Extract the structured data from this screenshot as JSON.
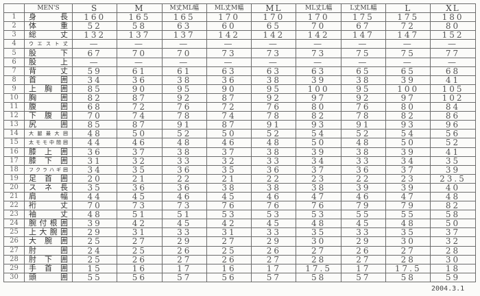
{
  "header": [
    "",
    "MEN'S",
    "S",
    "M",
    "M丈ML幅",
    "ML丈M幅",
    "ML",
    "ML丈L幅",
    "L丈ML幅",
    "L",
    "XL"
  ],
  "rows": [
    {
      "no": "1",
      "label": "身長",
      "values": [
        "160",
        "165",
        "165",
        "170",
        "170",
        "170",
        "175",
        "175",
        "180"
      ]
    },
    {
      "no": "2",
      "label": "体重",
      "values": [
        "52",
        "58",
        "63",
        "60",
        "65",
        "70",
        "67",
        "72",
        "80"
      ]
    },
    {
      "no": "3",
      "label": "総丈",
      "values": [
        "132",
        "137",
        "137",
        "142",
        "142",
        "142",
        "147",
        "147",
        "152"
      ]
    },
    {
      "no": "4",
      "label": "ウエスト丈",
      "values": [
        "—",
        "—",
        "—",
        "—",
        "—",
        "—",
        "—",
        "—",
        "—"
      ]
    },
    {
      "no": "5",
      "label": "股下",
      "values": [
        "67",
        "70",
        "70",
        "73",
        "73",
        "73",
        "75",
        "75",
        "77"
      ]
    },
    {
      "no": "6",
      "label": "股上",
      "values": [
        "—",
        "—",
        "—",
        "—",
        "—",
        "—",
        "—",
        "—",
        "—"
      ]
    },
    {
      "no": "7",
      "label": "背丈",
      "values": [
        "59",
        "61",
        "61",
        "63",
        "63",
        "63",
        "65",
        "65",
        "68"
      ]
    },
    {
      "no": "8",
      "label": "首囲",
      "values": [
        "34",
        "36",
        "38",
        "36",
        "38",
        "39",
        "38",
        "39",
        "41"
      ]
    },
    {
      "no": "9",
      "label": "上胸囲",
      "values": [
        "85",
        "90",
        "95",
        "90",
        "95",
        "100",
        "95",
        "100",
        "105"
      ]
    },
    {
      "no": "10",
      "label": "胸囲",
      "values": [
        "82",
        "87",
        "92",
        "87",
        "92",
        "97",
        "92",
        "97",
        "102"
      ]
    },
    {
      "no": "11",
      "label": "腹囲",
      "values": [
        "68",
        "72",
        "76",
        "72",
        "76",
        "80",
        "76",
        "80",
        "84"
      ]
    },
    {
      "no": "12",
      "label": "下腹囲",
      "values": [
        "70",
        "74",
        "78",
        "74",
        "78",
        "82",
        "78",
        "82",
        "86"
      ]
    },
    {
      "no": "13",
      "label": "尻囲",
      "values": [
        "85",
        "87",
        "91",
        "87",
        "91",
        "93",
        "91",
        "93",
        "96"
      ]
    },
    {
      "no": "14",
      "label": "大腿最大囲",
      "values": [
        "48",
        "50",
        "52",
        "50",
        "52",
        "54",
        "52",
        "54",
        "56"
      ]
    },
    {
      "no": "15",
      "label": "太モモ中間囲",
      "values": [
        "44",
        "46",
        "48",
        "46",
        "48",
        "50",
        "48",
        "50",
        "52"
      ]
    },
    {
      "no": "16",
      "label": "膝上囲",
      "values": [
        "36",
        "37",
        "38",
        "37",
        "38",
        "39",
        "38",
        "39",
        "41"
      ]
    },
    {
      "no": "17",
      "label": "膝下囲",
      "values": [
        "31",
        "32",
        "33",
        "32",
        "33",
        "34",
        "33",
        "34",
        "35"
      ]
    },
    {
      "no": "18",
      "label": "フクラハギ囲",
      "values": [
        "34",
        "35",
        "36",
        "35",
        "36",
        "37",
        "36",
        "37",
        "39"
      ]
    },
    {
      "no": "19",
      "label": "足首囲",
      "values": [
        "20",
        "21",
        "22",
        "21",
        "22",
        "23",
        "22",
        "23",
        "23.5"
      ]
    },
    {
      "no": "20",
      "label": "スネ長",
      "values": [
        "35",
        "36",
        "36",
        "38",
        "38",
        "38",
        "39",
        "39",
        "40"
      ]
    },
    {
      "no": "21",
      "label": "肩幅",
      "values": [
        "44",
        "45",
        "46",
        "45",
        "46",
        "47",
        "46",
        "47",
        "48"
      ]
    },
    {
      "no": "22",
      "label": "裄丈",
      "values": [
        "70",
        "73",
        "73",
        "76",
        "76",
        "76",
        "79",
        "79",
        "82"
      ]
    },
    {
      "no": "23",
      "label": "袖丈",
      "values": [
        "48",
        "51",
        "51",
        "53",
        "53",
        "53",
        "55",
        "55",
        "58"
      ]
    },
    {
      "no": "24",
      "label": "腕付根囲",
      "values": [
        "39",
        "42",
        "45",
        "42",
        "45",
        "48",
        "45",
        "48",
        "50"
      ]
    },
    {
      "no": "25",
      "label": "上大腕囲",
      "values": [
        "29",
        "31",
        "33",
        "31",
        "33",
        "35",
        "33",
        "35",
        "37"
      ]
    },
    {
      "no": "26",
      "label": "大腕囲",
      "values": [
        "25",
        "27",
        "29",
        "27",
        "29",
        "30",
        "29",
        "30",
        "32"
      ]
    },
    {
      "no": "27",
      "label": "肘囲",
      "values": [
        "24",
        "25",
        "26",
        "25",
        "26",
        "27",
        "26",
        "27",
        "28"
      ]
    },
    {
      "no": "28",
      "label": "肘下囲",
      "values": [
        "25",
        "26",
        "27",
        "26",
        "27",
        "28",
        "27",
        "28",
        "30"
      ]
    },
    {
      "no": "29",
      "label": "手首囲",
      "values": [
        "15",
        "16",
        "17",
        "16",
        "17",
        "17.5",
        "17",
        "17.5",
        "18"
      ]
    },
    {
      "no": "30",
      "label": "頭囲",
      "values": [
        "55",
        "56",
        "57",
        "56",
        "57",
        "58",
        "57",
        "58",
        "59"
      ]
    }
  ],
  "date": "2004.3.1"
}
